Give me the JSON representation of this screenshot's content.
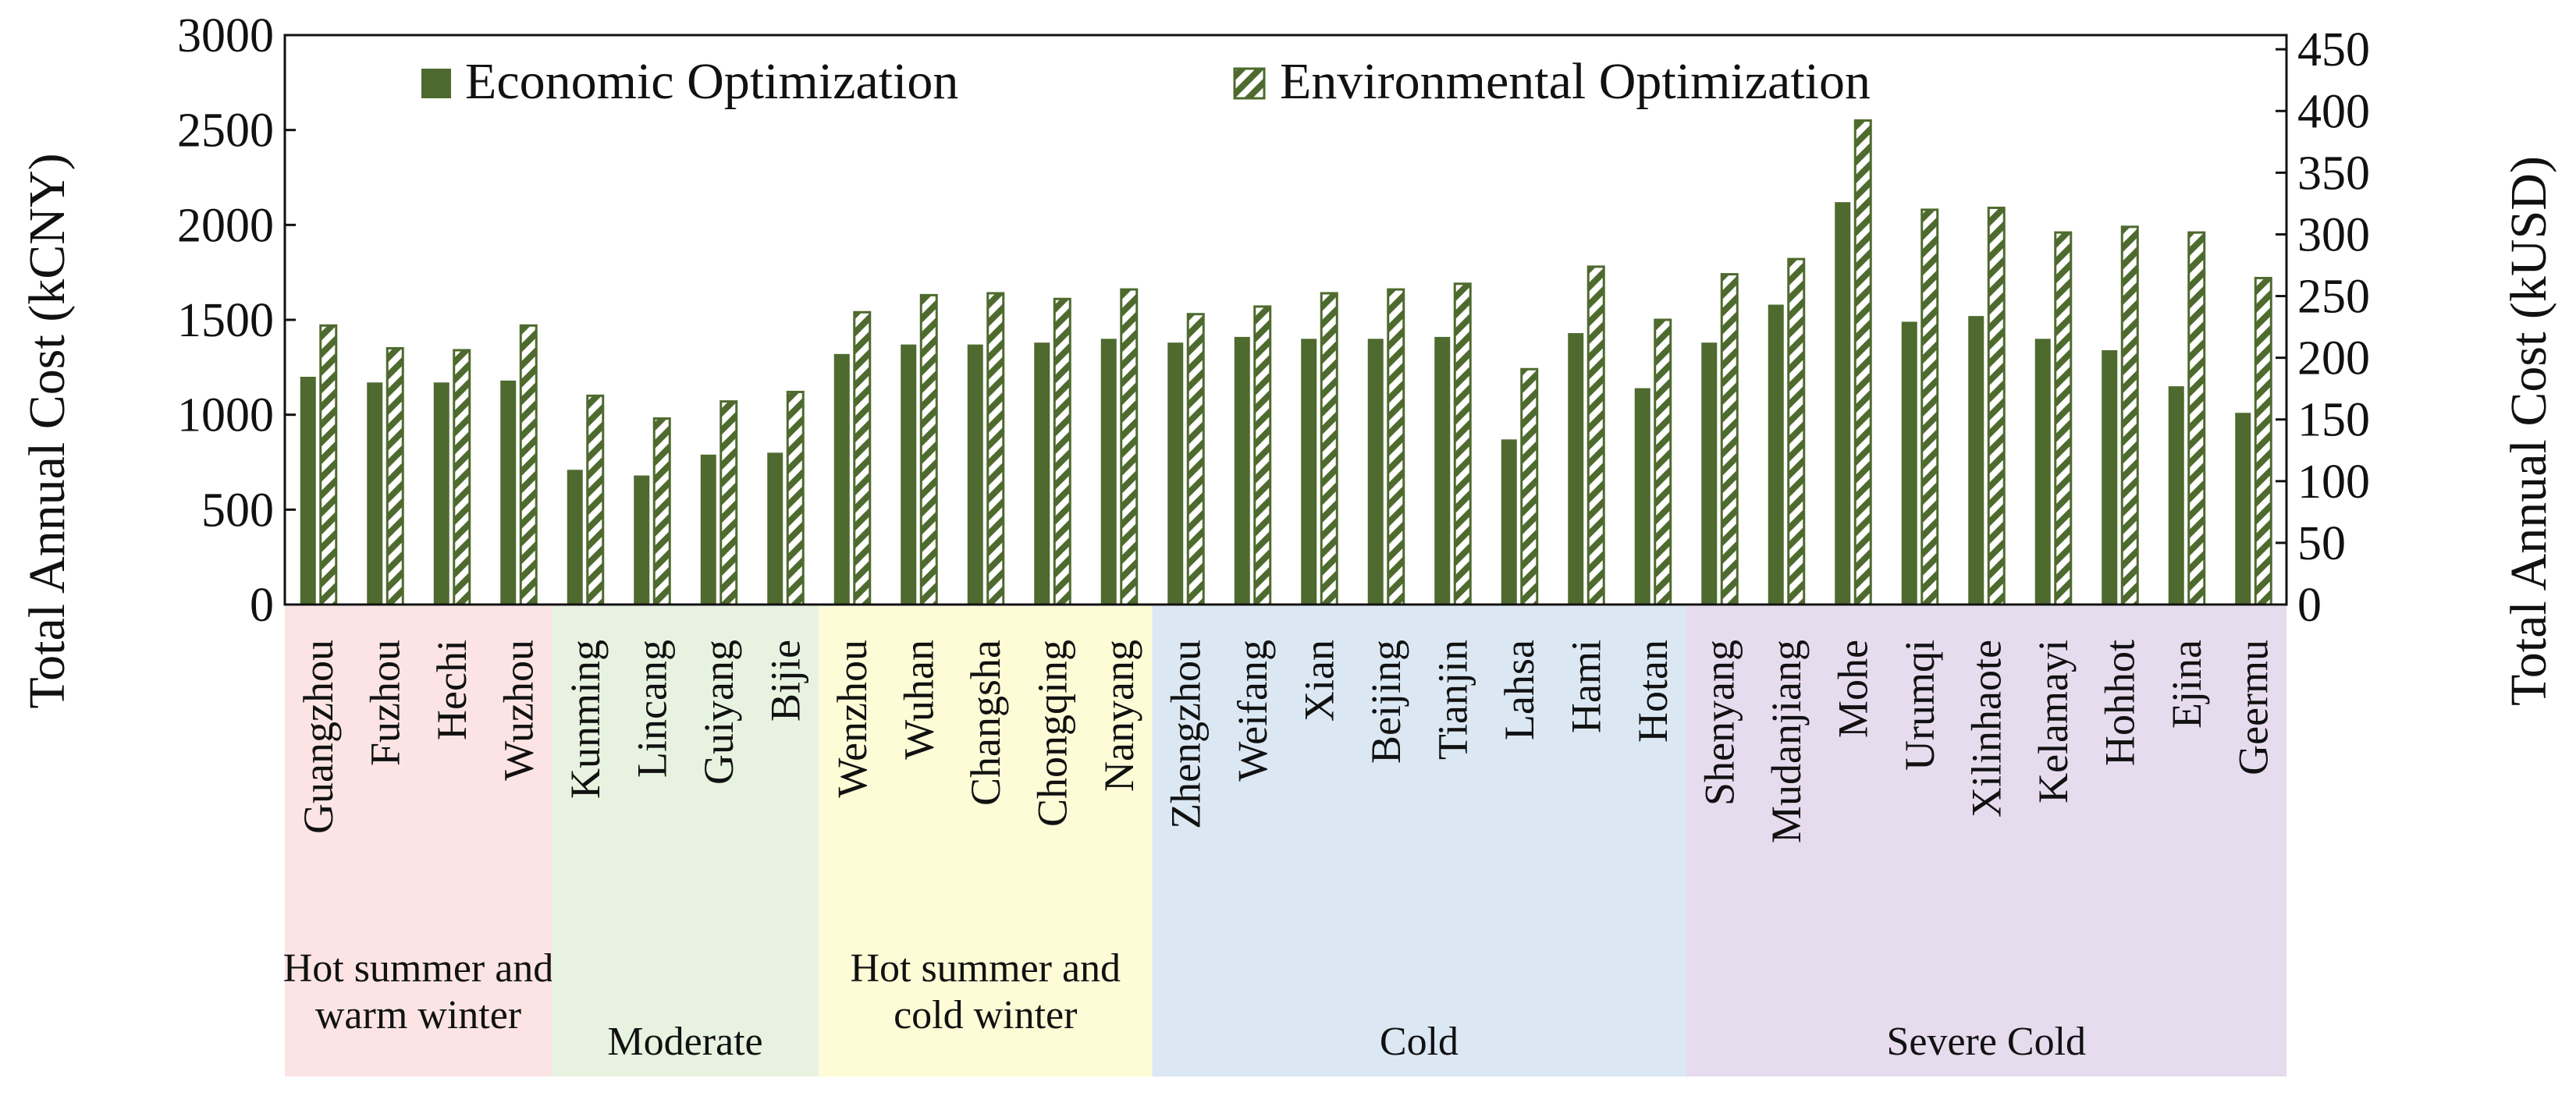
{
  "chart_data": {
    "type": "bar",
    "series": [
      {
        "name": "Economic Optimization",
        "values": [
          1200,
          1170,
          1170,
          1180,
          710,
          680,
          790,
          800,
          1320,
          1370,
          1370,
          1380,
          1400,
          1380,
          1410,
          1400,
          1400,
          1410,
          870,
          1430,
          1140,
          1380,
          1580,
          2120,
          1490,
          1520,
          1400,
          1340,
          1150,
          1010
        ]
      },
      {
        "name": "Environmental Optimization",
        "values": [
          1470,
          1350,
          1340,
          1470,
          1100,
          980,
          1070,
          1120,
          1540,
          1630,
          1640,
          1610,
          1660,
          1530,
          1570,
          1640,
          1660,
          1690,
          1240,
          1780,
          1500,
          1740,
          1820,
          2550,
          2080,
          2090,
          1960,
          1990,
          1960,
          1720
        ]
      }
    ],
    "categories": [
      "Guangzhou",
      "Fuzhou",
      "Hechi",
      "Wuzhou",
      "Kunming",
      "Lincang",
      "Guiyang",
      "Bijie",
      "Wenzhou",
      "Wuhan",
      "Changsha",
      "Chongqing",
      "Nanyang",
      "Zhengzhou",
      "Weifang",
      "Xian",
      "Beijing",
      "Tianjin",
      "Lahsa",
      "Hami",
      "Hotan",
      "Shenyang",
      "Mudanjiang",
      "Mohe",
      "Urumqi",
      "Xilinhaote",
      "Kelamayi",
      "Hohhot",
      "Ejina",
      "Geermu"
    ],
    "zones": [
      {
        "lines": [
          "Hot summer and",
          "warm winter"
        ],
        "start": 0,
        "count": 4,
        "color": "#fce4e4"
      },
      {
        "lines": [
          "Moderate"
        ],
        "start": 4,
        "count": 4,
        "color": "#e8f2e0"
      },
      {
        "lines": [
          "Hot summer and",
          "cold winter"
        ],
        "start": 8,
        "count": 5,
        "color": "#fdfcd7"
      },
      {
        "lines": [
          "Cold"
        ],
        "start": 13,
        "count": 8,
        "color": "#dbe8f4"
      },
      {
        "lines": [
          "Severe Cold"
        ],
        "start": 21,
        "count": 9,
        "color": "#e6dcee"
      }
    ],
    "ylabel": "Total Annual Cost (kCNY)",
    "y2label": "Total Annual Cost (kUSD)",
    "ylim": [
      0,
      3000
    ],
    "yticks": [
      0,
      500,
      1000,
      1500,
      2000,
      2500,
      3000
    ],
    "y2lim": [
      0,
      461.5
    ],
    "y2ticks": [
      0,
      50,
      100,
      150,
      200,
      250,
      300,
      350,
      400,
      450
    ],
    "legend_position": "top",
    "colors": {
      "bar": "#4e6a2e",
      "hatch_bg": "#ffffff"
    }
  }
}
